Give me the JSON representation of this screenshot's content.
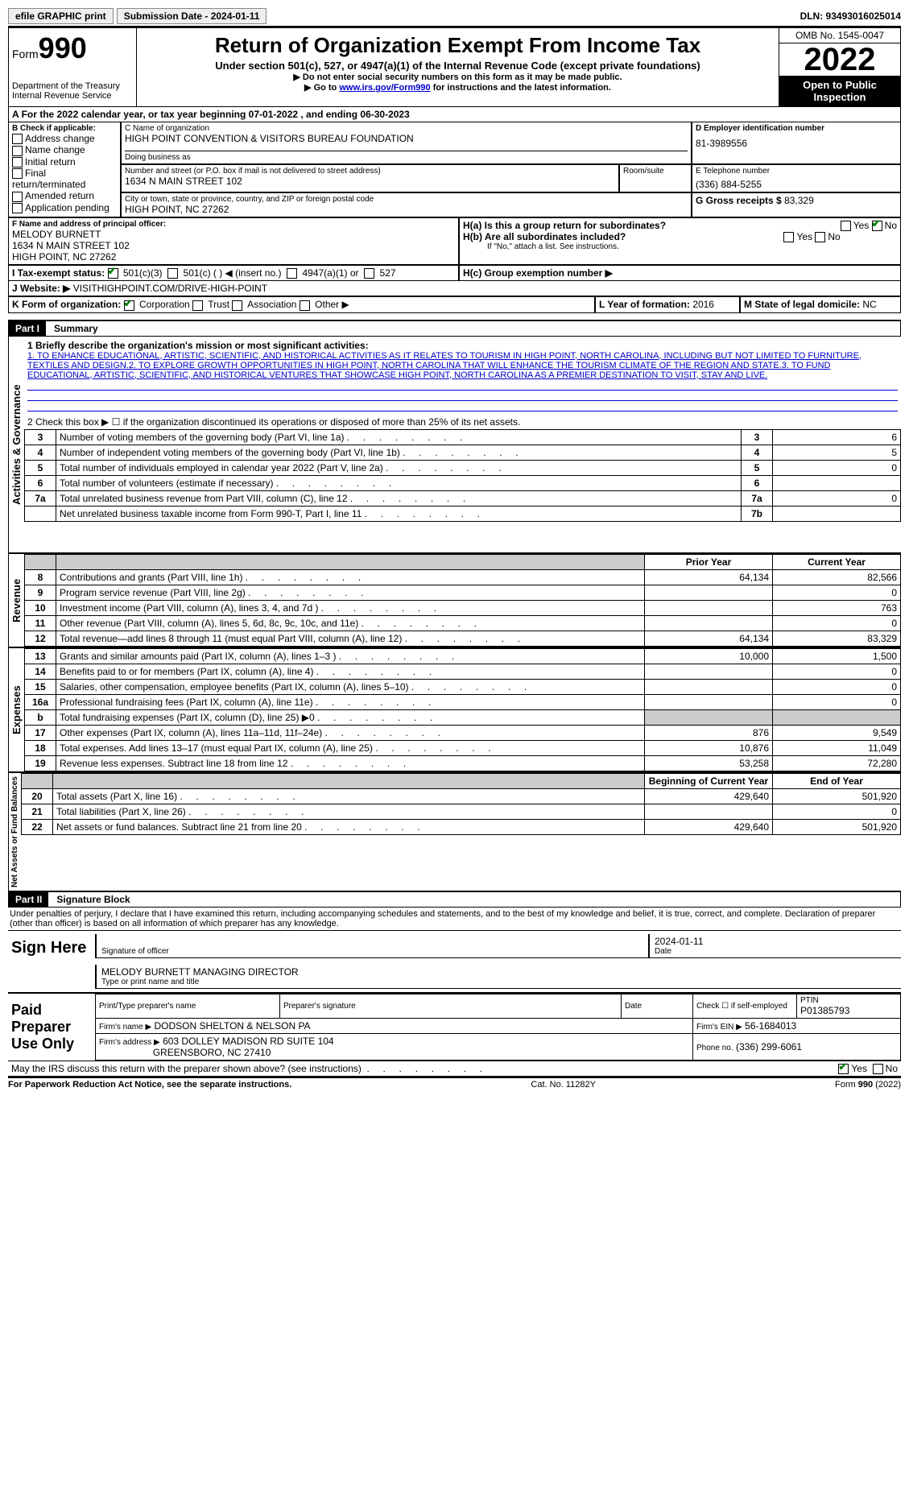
{
  "topbar": {
    "efile": "efile GRAPHIC print",
    "submission": "Submission Date - 2024-01-11",
    "dln": "DLN: 93493016025014"
  },
  "header": {
    "form_label": "Form",
    "form_num": "990",
    "dept": "Department of the Treasury",
    "irs": "Internal Revenue Service",
    "title": "Return of Organization Exempt From Income Tax",
    "subtitle": "Under section 501(c), 527, or 4947(a)(1) of the Internal Revenue Code (except private foundations)",
    "note1": "▶ Do not enter social security numbers on this form as it may be made public.",
    "note2_pre": "▶ Go to ",
    "note2_link": "www.irs.gov/Form990",
    "note2_post": " for instructions and the latest information.",
    "omb": "OMB No. 1545-0047",
    "year": "2022",
    "open": "Open to Public Inspection"
  },
  "periodA": "For the 2022 calendar year, or tax year beginning 07-01-2022    , and ending 06-30-2023",
  "boxB": {
    "title": "B Check if applicable:",
    "opts": [
      "Address change",
      "Name change",
      "Initial return",
      "Final return/terminated",
      "Amended return",
      "Application pending"
    ]
  },
  "boxC": {
    "name_label": "C Name of organization",
    "name": "HIGH POINT CONVENTION & VISITORS BUREAU FOUNDATION",
    "dba_label": "Doing business as",
    "street_label": "Number and street (or P.O. box if mail is not delivered to street address)",
    "street": "1634 N MAIN STREET 102",
    "room_label": "Room/suite",
    "city_label": "City or town, state or province, country, and ZIP or foreign postal code",
    "city": "HIGH POINT, NC  27262"
  },
  "boxD": {
    "label": "D Employer identification number",
    "val": "81-3989556"
  },
  "boxE": {
    "label": "E Telephone number",
    "val": "(336) 884-5255"
  },
  "boxG": {
    "label": "G Gross receipts $",
    "val": "83,329"
  },
  "boxF": {
    "label": "F  Name and address of principal officer:",
    "name": "MELODY BURNETT",
    "addr1": "1634 N MAIN STREET 102",
    "addr2": "HIGH POINT, NC  27262"
  },
  "boxH": {
    "a": "H(a)  Is this a group return for subordinates?",
    "b": "H(b)  Are all subordinates included?",
    "b_note": "If \"No,\" attach a list. See instructions.",
    "c": "H(c)  Group exemption number ▶"
  },
  "boxI": {
    "label": "I   Tax-exempt status:",
    "c3": "501(c)(3)",
    "c": "501(c) (  ) ◀ (insert no.)",
    "a1": "4947(a)(1) or",
    "527": "527"
  },
  "boxJ": {
    "label": "J   Website: ▶",
    "val": "VISITHIGHPOINT.COM/DRIVE-HIGH-POINT"
  },
  "boxK": {
    "label": "K Form of organization:",
    "opts": [
      "Corporation",
      "Trust",
      "Association",
      "Other ▶"
    ]
  },
  "boxL": {
    "label": "L Year of formation:",
    "val": "2016"
  },
  "boxM": {
    "label": "M State of legal domicile:",
    "val": "NC"
  },
  "part1": {
    "title": "Part I",
    "name": "Summary",
    "vlabel1": "Activities & Governance",
    "line1_label": "1   Briefly describe the organization's mission or most significant activities:",
    "mission": "1. TO ENHANCE EDUCATIONAL, ARTISTIC, SCIENTIFIC, AND HISTORICAL ACTIVITIES AS IT RELATES TO TOURISM IN HIGH POINT, NORTH CAROLINA, INCLUDING BUT NOT LIMITED TO FURNITURE, TEXTILES AND DESIGN.2. TO EXPLORE GROWTH OPPORTUNITIES IN HIGH POINT, NORTH CAROLINA THAT WILL ENHANCE THE TOURISM CLIMATE OF THE REGION AND STATE.3. TO FUND EDUCATIONAL, ARTISTIC, SCIENTIFIC, AND HISTORICAL VENTURES THAT SHOWCASE HIGH POINT, NORTH CAROLINA AS A PREMIER DESTINATION TO VISIT, STAY AND LIVE.",
    "line2": "2    Check this box ▶ ☐  if the organization discontinued its operations or disposed of more than 25% of its net assets.",
    "gov_rows": [
      {
        "n": "3",
        "t": "Number of voting members of the governing body (Part VI, line 1a)",
        "c": "3",
        "v": "6"
      },
      {
        "n": "4",
        "t": "Number of independent voting members of the governing body (Part VI, line 1b)",
        "c": "4",
        "v": "5"
      },
      {
        "n": "5",
        "t": "Total number of individuals employed in calendar year 2022 (Part V, line 2a)",
        "c": "5",
        "v": "0"
      },
      {
        "n": "6",
        "t": "Total number of volunteers (estimate if necessary)",
        "c": "6",
        "v": ""
      },
      {
        "n": "7a",
        "t": "Total unrelated business revenue from Part VIII, column (C), line 12",
        "c": "7a",
        "v": "0"
      },
      {
        "n": "",
        "t": "Net unrelated business taxable income from Form 990-T, Part I, line 11",
        "c": "7b",
        "v": ""
      }
    ],
    "vlabel2": "Revenue",
    "col_prior": "Prior Year",
    "col_curr": "Current Year",
    "rev_rows": [
      {
        "n": "8",
        "t": "Contributions and grants (Part VIII, line 1h)",
        "p": "64,134",
        "c": "82,566"
      },
      {
        "n": "9",
        "t": "Program service revenue (Part VIII, line 2g)",
        "p": "",
        "c": "0"
      },
      {
        "n": "10",
        "t": "Investment income (Part VIII, column (A), lines 3, 4, and 7d )",
        "p": "",
        "c": "763"
      },
      {
        "n": "11",
        "t": "Other revenue (Part VIII, column (A), lines 5, 6d, 8c, 9c, 10c, and 11e)",
        "p": "",
        "c": "0"
      },
      {
        "n": "12",
        "t": "Total revenue—add lines 8 through 11 (must equal Part VIII, column (A), line 12)",
        "p": "64,134",
        "c": "83,329"
      }
    ],
    "vlabel3": "Expenses",
    "exp_rows": [
      {
        "n": "13",
        "t": "Grants and similar amounts paid (Part IX, column (A), lines 1–3 )",
        "p": "10,000",
        "c": "1,500"
      },
      {
        "n": "14",
        "t": "Benefits paid to or for members (Part IX, column (A), line 4)",
        "p": "",
        "c": "0"
      },
      {
        "n": "15",
        "t": "Salaries, other compensation, employee benefits (Part IX, column (A), lines 5–10)",
        "p": "",
        "c": "0"
      },
      {
        "n": "16a",
        "t": "Professional fundraising fees (Part IX, column (A), line 11e)",
        "p": "",
        "c": "0"
      },
      {
        "n": "b",
        "t": "Total fundraising expenses (Part IX, column (D), line 25) ▶0",
        "p": "grey",
        "c": "grey"
      },
      {
        "n": "17",
        "t": "Other expenses (Part IX, column (A), lines 11a–11d, 11f–24e)",
        "p": "876",
        "c": "9,549"
      },
      {
        "n": "18",
        "t": "Total expenses. Add lines 13–17 (must equal Part IX, column (A), line 25)",
        "p": "10,876",
        "c": "11,049"
      },
      {
        "n": "19",
        "t": "Revenue less expenses. Subtract line 18 from line 12",
        "p": "53,258",
        "c": "72,280"
      }
    ],
    "vlabel4": "Net Assets or Fund Balances",
    "col_beg": "Beginning of Current Year",
    "col_end": "End of Year",
    "net_rows": [
      {
        "n": "20",
        "t": "Total assets (Part X, line 16)",
        "p": "429,640",
        "c": "501,920"
      },
      {
        "n": "21",
        "t": "Total liabilities (Part X, line 26)",
        "p": "",
        "c": "0"
      },
      {
        "n": "22",
        "t": "Net assets or fund balances. Subtract line 21 from line 20",
        "p": "429,640",
        "c": "501,920"
      }
    ]
  },
  "part2": {
    "title": "Part II",
    "name": "Signature Block",
    "decl": "Under penalties of perjury, I declare that I have examined this return, including accompanying schedules and statements, and to the best of my knowledge and belief, it is true, correct, and complete. Declaration of preparer (other than officer) is based on all information of which preparer has any knowledge.",
    "sign_here": "Sign Here",
    "sig_officer": "Signature of officer",
    "sig_date": "2024-01-11",
    "date_label": "Date",
    "officer_name": "MELODY BURNETT  MANAGING DIRECTOR",
    "officer_label": "Type or print name and title",
    "paid": "Paid Preparer Use Only",
    "prep_name_label": "Print/Type preparer's name",
    "prep_sig_label": "Preparer's signature",
    "prep_date_label": "Date",
    "self_emp": "Check ☐ if self-employed",
    "ptin_label": "PTIN",
    "ptin": "P01385793",
    "firm_name_label": "Firm's name    ▶",
    "firm_name": "DODSON SHELTON & NELSON PA",
    "firm_ein_label": "Firm's EIN ▶",
    "firm_ein": "56-1684013",
    "firm_addr_label": "Firm's address ▶",
    "firm_addr1": "603 DOLLEY MADISON RD SUITE 104",
    "firm_addr2": "GREENSBORO, NC  27410",
    "phone_label": "Phone no.",
    "phone": "(336) 299-6061",
    "discuss": "May the IRS discuss this return with the preparer shown above? (see instructions)",
    "yes": "Yes",
    "no": "No"
  },
  "footer": {
    "left": "For Paperwork Reduction Act Notice, see the separate instructions.",
    "mid": "Cat. No. 11282Y",
    "right": "Form 990 (2022)"
  }
}
